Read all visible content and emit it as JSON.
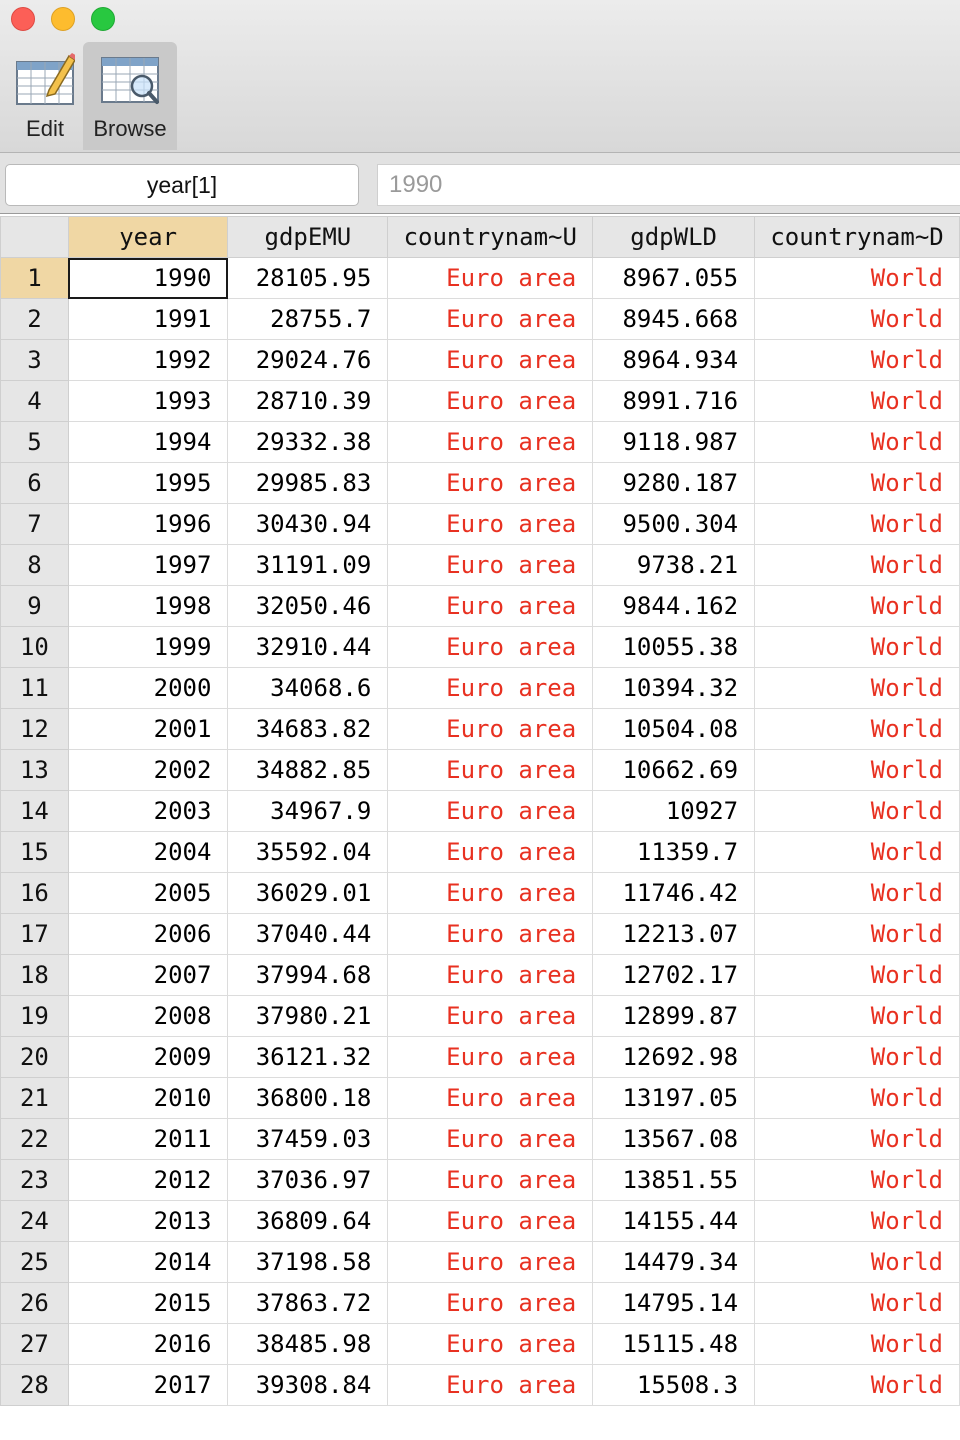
{
  "window": {
    "buttons": [
      "close",
      "minimize",
      "maximize"
    ]
  },
  "toolbar": {
    "edit_label": "Edit",
    "browse_label": "Browse",
    "edit_icon": "table-pencil-icon",
    "browse_icon": "table-magnifier-icon"
  },
  "cmdbar": {
    "cell_name": "year[1]",
    "cell_value": "1990"
  },
  "colors": {
    "string_text": "#e83121",
    "active_header": "#f0d7a4"
  },
  "columns": [
    "year",
    "gdpEMU",
    "countrynam~U",
    "gdpWLD",
    "countrynam~D"
  ],
  "rows": [
    {
      "n": "1",
      "year": "1990",
      "gdpEMU": "28105.95",
      "cEMU": "Euro area",
      "gdpWLD": "8967.055",
      "cWLD": "World"
    },
    {
      "n": "2",
      "year": "1991",
      "gdpEMU": "28755.7",
      "cEMU": "Euro area",
      "gdpWLD": "8945.668",
      "cWLD": "World"
    },
    {
      "n": "3",
      "year": "1992",
      "gdpEMU": "29024.76",
      "cEMU": "Euro area",
      "gdpWLD": "8964.934",
      "cWLD": "World"
    },
    {
      "n": "4",
      "year": "1993",
      "gdpEMU": "28710.39",
      "cEMU": "Euro area",
      "gdpWLD": "8991.716",
      "cWLD": "World"
    },
    {
      "n": "5",
      "year": "1994",
      "gdpEMU": "29332.38",
      "cEMU": "Euro area",
      "gdpWLD": "9118.987",
      "cWLD": "World"
    },
    {
      "n": "6",
      "year": "1995",
      "gdpEMU": "29985.83",
      "cEMU": "Euro area",
      "gdpWLD": "9280.187",
      "cWLD": "World"
    },
    {
      "n": "7",
      "year": "1996",
      "gdpEMU": "30430.94",
      "cEMU": "Euro area",
      "gdpWLD": "9500.304",
      "cWLD": "World"
    },
    {
      "n": "8",
      "year": "1997",
      "gdpEMU": "31191.09",
      "cEMU": "Euro area",
      "gdpWLD": "9738.21",
      "cWLD": "World"
    },
    {
      "n": "9",
      "year": "1998",
      "gdpEMU": "32050.46",
      "cEMU": "Euro area",
      "gdpWLD": "9844.162",
      "cWLD": "World"
    },
    {
      "n": "10",
      "year": "1999",
      "gdpEMU": "32910.44",
      "cEMU": "Euro area",
      "gdpWLD": "10055.38",
      "cWLD": "World"
    },
    {
      "n": "11",
      "year": "2000",
      "gdpEMU": "34068.6",
      "cEMU": "Euro area",
      "gdpWLD": "10394.32",
      "cWLD": "World"
    },
    {
      "n": "12",
      "year": "2001",
      "gdpEMU": "34683.82",
      "cEMU": "Euro area",
      "gdpWLD": "10504.08",
      "cWLD": "World"
    },
    {
      "n": "13",
      "year": "2002",
      "gdpEMU": "34882.85",
      "cEMU": "Euro area",
      "gdpWLD": "10662.69",
      "cWLD": "World"
    },
    {
      "n": "14",
      "year": "2003",
      "gdpEMU": "34967.9",
      "cEMU": "Euro area",
      "gdpWLD": "10927",
      "cWLD": "World"
    },
    {
      "n": "15",
      "year": "2004",
      "gdpEMU": "35592.04",
      "cEMU": "Euro area",
      "gdpWLD": "11359.7",
      "cWLD": "World"
    },
    {
      "n": "16",
      "year": "2005",
      "gdpEMU": "36029.01",
      "cEMU": "Euro area",
      "gdpWLD": "11746.42",
      "cWLD": "World"
    },
    {
      "n": "17",
      "year": "2006",
      "gdpEMU": "37040.44",
      "cEMU": "Euro area",
      "gdpWLD": "12213.07",
      "cWLD": "World"
    },
    {
      "n": "18",
      "year": "2007",
      "gdpEMU": "37994.68",
      "cEMU": "Euro area",
      "gdpWLD": "12702.17",
      "cWLD": "World"
    },
    {
      "n": "19",
      "year": "2008",
      "gdpEMU": "37980.21",
      "cEMU": "Euro area",
      "gdpWLD": "12899.87",
      "cWLD": "World"
    },
    {
      "n": "20",
      "year": "2009",
      "gdpEMU": "36121.32",
      "cEMU": "Euro area",
      "gdpWLD": "12692.98",
      "cWLD": "World"
    },
    {
      "n": "21",
      "year": "2010",
      "gdpEMU": "36800.18",
      "cEMU": "Euro area",
      "gdpWLD": "13197.05",
      "cWLD": "World"
    },
    {
      "n": "22",
      "year": "2011",
      "gdpEMU": "37459.03",
      "cEMU": "Euro area",
      "gdpWLD": "13567.08",
      "cWLD": "World"
    },
    {
      "n": "23",
      "year": "2012",
      "gdpEMU": "37036.97",
      "cEMU": "Euro area",
      "gdpWLD": "13851.55",
      "cWLD": "World"
    },
    {
      "n": "24",
      "year": "2013",
      "gdpEMU": "36809.64",
      "cEMU": "Euro area",
      "gdpWLD": "14155.44",
      "cWLD": "World"
    },
    {
      "n": "25",
      "year": "2014",
      "gdpEMU": "37198.58",
      "cEMU": "Euro area",
      "gdpWLD": "14479.34",
      "cWLD": "World"
    },
    {
      "n": "26",
      "year": "2015",
      "gdpEMU": "37863.72",
      "cEMU": "Euro area",
      "gdpWLD": "14795.14",
      "cWLD": "World"
    },
    {
      "n": "27",
      "year": "2016",
      "gdpEMU": "38485.98",
      "cEMU": "Euro area",
      "gdpWLD": "15115.48",
      "cWLD": "World"
    },
    {
      "n": "28",
      "year": "2017",
      "gdpEMU": "39308.84",
      "cEMU": "Euro area",
      "gdpWLD": "15508.3",
      "cWLD": "World"
    }
  ]
}
